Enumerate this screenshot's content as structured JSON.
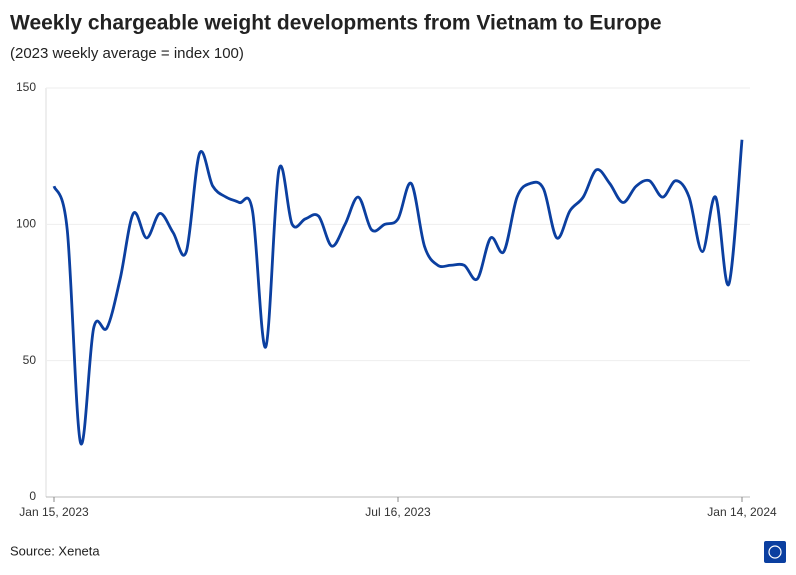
{
  "chart_data": {
    "type": "line",
    "title": "Weekly chargeable weight developments from Vietnam to Europe",
    "subtitle": "(2023 weekly average = index 100)",
    "source": "Source: Xeneta",
    "categories": [
      "Jan 15, 2023",
      null,
      null,
      null,
      null,
      null,
      null,
      null,
      null,
      null,
      null,
      null,
      null,
      null,
      null,
      null,
      null,
      null,
      null,
      null,
      null,
      null,
      null,
      null,
      null,
      null,
      "Jul 16, 2023",
      null,
      null,
      null,
      null,
      null,
      null,
      null,
      null,
      null,
      null,
      null,
      null,
      null,
      null,
      null,
      null,
      null,
      null,
      null,
      null,
      null,
      null,
      null,
      null,
      null,
      "Jan 14, 2024"
    ],
    "series": [
      {
        "color": "#0b3fa0",
        "values": [
          114,
          98,
          20,
          62,
          62,
          80,
          104,
          95,
          104,
          97,
          90,
          126,
          114,
          110,
          108,
          105,
          55,
          120,
          100,
          102,
          103,
          92,
          100,
          110,
          98,
          100,
          102,
          115,
          92,
          85,
          85,
          85,
          80,
          95,
          90,
          110,
          115,
          113,
          95,
          105,
          110,
          120,
          115,
          108,
          114,
          116,
          110,
          116,
          110,
          90,
          110,
          78,
          131
        ]
      }
    ],
    "ylim": [
      0,
      150
    ],
    "yticks": [
      0,
      50,
      100,
      150
    ],
    "grid": true
  }
}
